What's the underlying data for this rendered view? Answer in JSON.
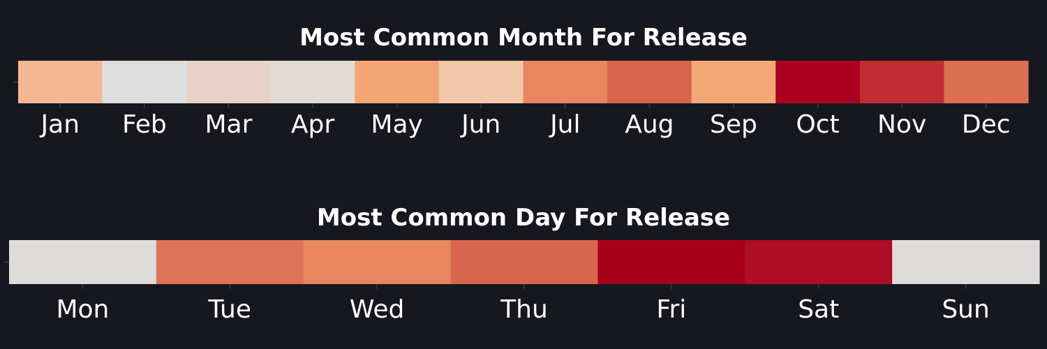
{
  "colors": {
    "background": "#17181f",
    "text": "#ffffff",
    "scale": [
      "#dcdcdc",
      "#f5b98f",
      "#e8805a",
      "#c8302d",
      "#a8001b"
    ]
  },
  "chart_data": [
    {
      "type": "heatmap",
      "title": "Most Common Month For Release",
      "categories": [
        "Jan",
        "Feb",
        "Mar",
        "Apr",
        "May",
        "Jun",
        "Jul",
        "Aug",
        "Sep",
        "Oct",
        "Nov",
        "Dec"
      ],
      "values": [
        0.32,
        0.0,
        0.14,
        0.08,
        0.4,
        0.24,
        0.58,
        0.7,
        0.38,
        1.0,
        0.86,
        0.62
      ],
      "cell_colors": [
        "#f3b893",
        "#dedede",
        "#e9d2c5",
        "#e1dcd6",
        "#f2a573",
        "#f3c8a9",
        "#e7865f",
        "#d8644d",
        "#f3a878",
        "#ab0020",
        "#c12c31",
        "#dd7052"
      ],
      "grid": false,
      "colorbar": false
    },
    {
      "type": "heatmap",
      "title": "Most Common Day For Release",
      "categories": [
        "Mon",
        "Tue",
        "Wed",
        "Thu",
        "Fri",
        "Sat",
        "Sun"
      ],
      "values": [
        0.0,
        0.62,
        0.55,
        0.68,
        1.0,
        0.95,
        0.0
      ],
      "cell_colors": [
        "#dedcda",
        "#df7358",
        "#e7865f",
        "#d8654e",
        "#a8001b",
        "#af0c25",
        "#dedcda"
      ],
      "grid": false,
      "colorbar": false
    }
  ]
}
